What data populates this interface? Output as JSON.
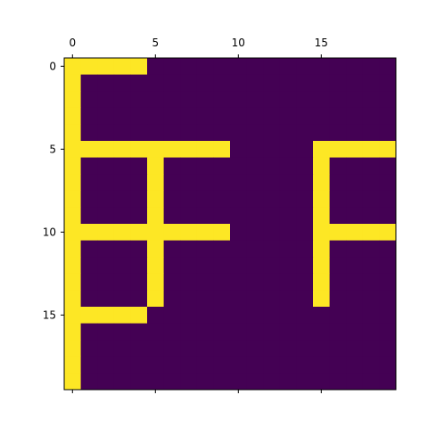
{
  "chart_data": {
    "type": "heatmap",
    "title": "",
    "xlabel": "",
    "ylabel": "",
    "rows": 20,
    "cols": 20,
    "xlim": [
      -0.5,
      19.5
    ],
    "ylim": [
      19.5,
      -0.5
    ],
    "x_ticks": [
      0,
      5,
      10,
      15
    ],
    "y_ticks": [
      0,
      5,
      10,
      15
    ],
    "x_tick_position": "top",
    "grid": false,
    "colors": {
      "low": "#440154",
      "high": "#fde725",
      "frame": "#000000"
    },
    "matrix": [
      [
        1,
        1,
        1,
        1,
        1,
        0,
        0,
        0,
        0,
        0,
        0,
        0,
        0,
        0,
        0,
        0,
        0,
        0,
        0,
        0
      ],
      [
        1,
        0,
        0,
        0,
        0,
        0,
        0,
        0,
        0,
        0,
        0,
        0,
        0,
        0,
        0,
        0,
        0,
        0,
        0,
        0
      ],
      [
        1,
        0,
        0,
        0,
        0,
        0,
        0,
        0,
        0,
        0,
        0,
        0,
        0,
        0,
        0,
        0,
        0,
        0,
        0,
        0
      ],
      [
        1,
        0,
        0,
        0,
        0,
        0,
        0,
        0,
        0,
        0,
        0,
        0,
        0,
        0,
        0,
        0,
        0,
        0,
        0,
        0
      ],
      [
        1,
        0,
        0,
        0,
        0,
        0,
        0,
        0,
        0,
        0,
        0,
        0,
        0,
        0,
        0,
        0,
        0,
        0,
        0,
        0
      ],
      [
        1,
        1,
        1,
        1,
        1,
        1,
        1,
        1,
        1,
        1,
        0,
        0,
        0,
        0,
        0,
        1,
        1,
        1,
        1,
        1
      ],
      [
        1,
        0,
        0,
        0,
        0,
        1,
        0,
        0,
        0,
        0,
        0,
        0,
        0,
        0,
        0,
        1,
        0,
        0,
        0,
        0
      ],
      [
        1,
        0,
        0,
        0,
        0,
        1,
        0,
        0,
        0,
        0,
        0,
        0,
        0,
        0,
        0,
        1,
        0,
        0,
        0,
        0
      ],
      [
        1,
        0,
        0,
        0,
        0,
        1,
        0,
        0,
        0,
        0,
        0,
        0,
        0,
        0,
        0,
        1,
        0,
        0,
        0,
        0
      ],
      [
        1,
        0,
        0,
        0,
        0,
        1,
        0,
        0,
        0,
        0,
        0,
        0,
        0,
        0,
        0,
        1,
        0,
        0,
        0,
        0
      ],
      [
        1,
        1,
        1,
        1,
        1,
        1,
        1,
        1,
        1,
        1,
        0,
        0,
        0,
        0,
        0,
        1,
        1,
        1,
        1,
        1
      ],
      [
        1,
        0,
        0,
        0,
        0,
        1,
        0,
        0,
        0,
        0,
        0,
        0,
        0,
        0,
        0,
        1,
        0,
        0,
        0,
        0
      ],
      [
        1,
        0,
        0,
        0,
        0,
        1,
        0,
        0,
        0,
        0,
        0,
        0,
        0,
        0,
        0,
        1,
        0,
        0,
        0,
        0
      ],
      [
        1,
        0,
        0,
        0,
        0,
        1,
        0,
        0,
        0,
        0,
        0,
        0,
        0,
        0,
        0,
        1,
        0,
        0,
        0,
        0
      ],
      [
        1,
        0,
        0,
        0,
        0,
        1,
        0,
        0,
        0,
        0,
        0,
        0,
        0,
        0,
        0,
        1,
        0,
        0,
        0,
        0
      ],
      [
        1,
        1,
        1,
        1,
        1,
        0,
        0,
        0,
        0,
        0,
        0,
        0,
        0,
        0,
        0,
        0,
        0,
        0,
        0,
        0
      ],
      [
        1,
        0,
        0,
        0,
        0,
        0,
        0,
        0,
        0,
        0,
        0,
        0,
        0,
        0,
        0,
        0,
        0,
        0,
        0,
        0
      ],
      [
        1,
        0,
        0,
        0,
        0,
        0,
        0,
        0,
        0,
        0,
        0,
        0,
        0,
        0,
        0,
        0,
        0,
        0,
        0,
        0
      ],
      [
        1,
        0,
        0,
        0,
        0,
        0,
        0,
        0,
        0,
        0,
        0,
        0,
        0,
        0,
        0,
        0,
        0,
        0,
        0,
        0
      ],
      [
        1,
        0,
        0,
        0,
        0,
        0,
        0,
        0,
        0,
        0,
        0,
        0,
        0,
        0,
        0,
        0,
        0,
        0,
        0,
        0
      ]
    ]
  }
}
